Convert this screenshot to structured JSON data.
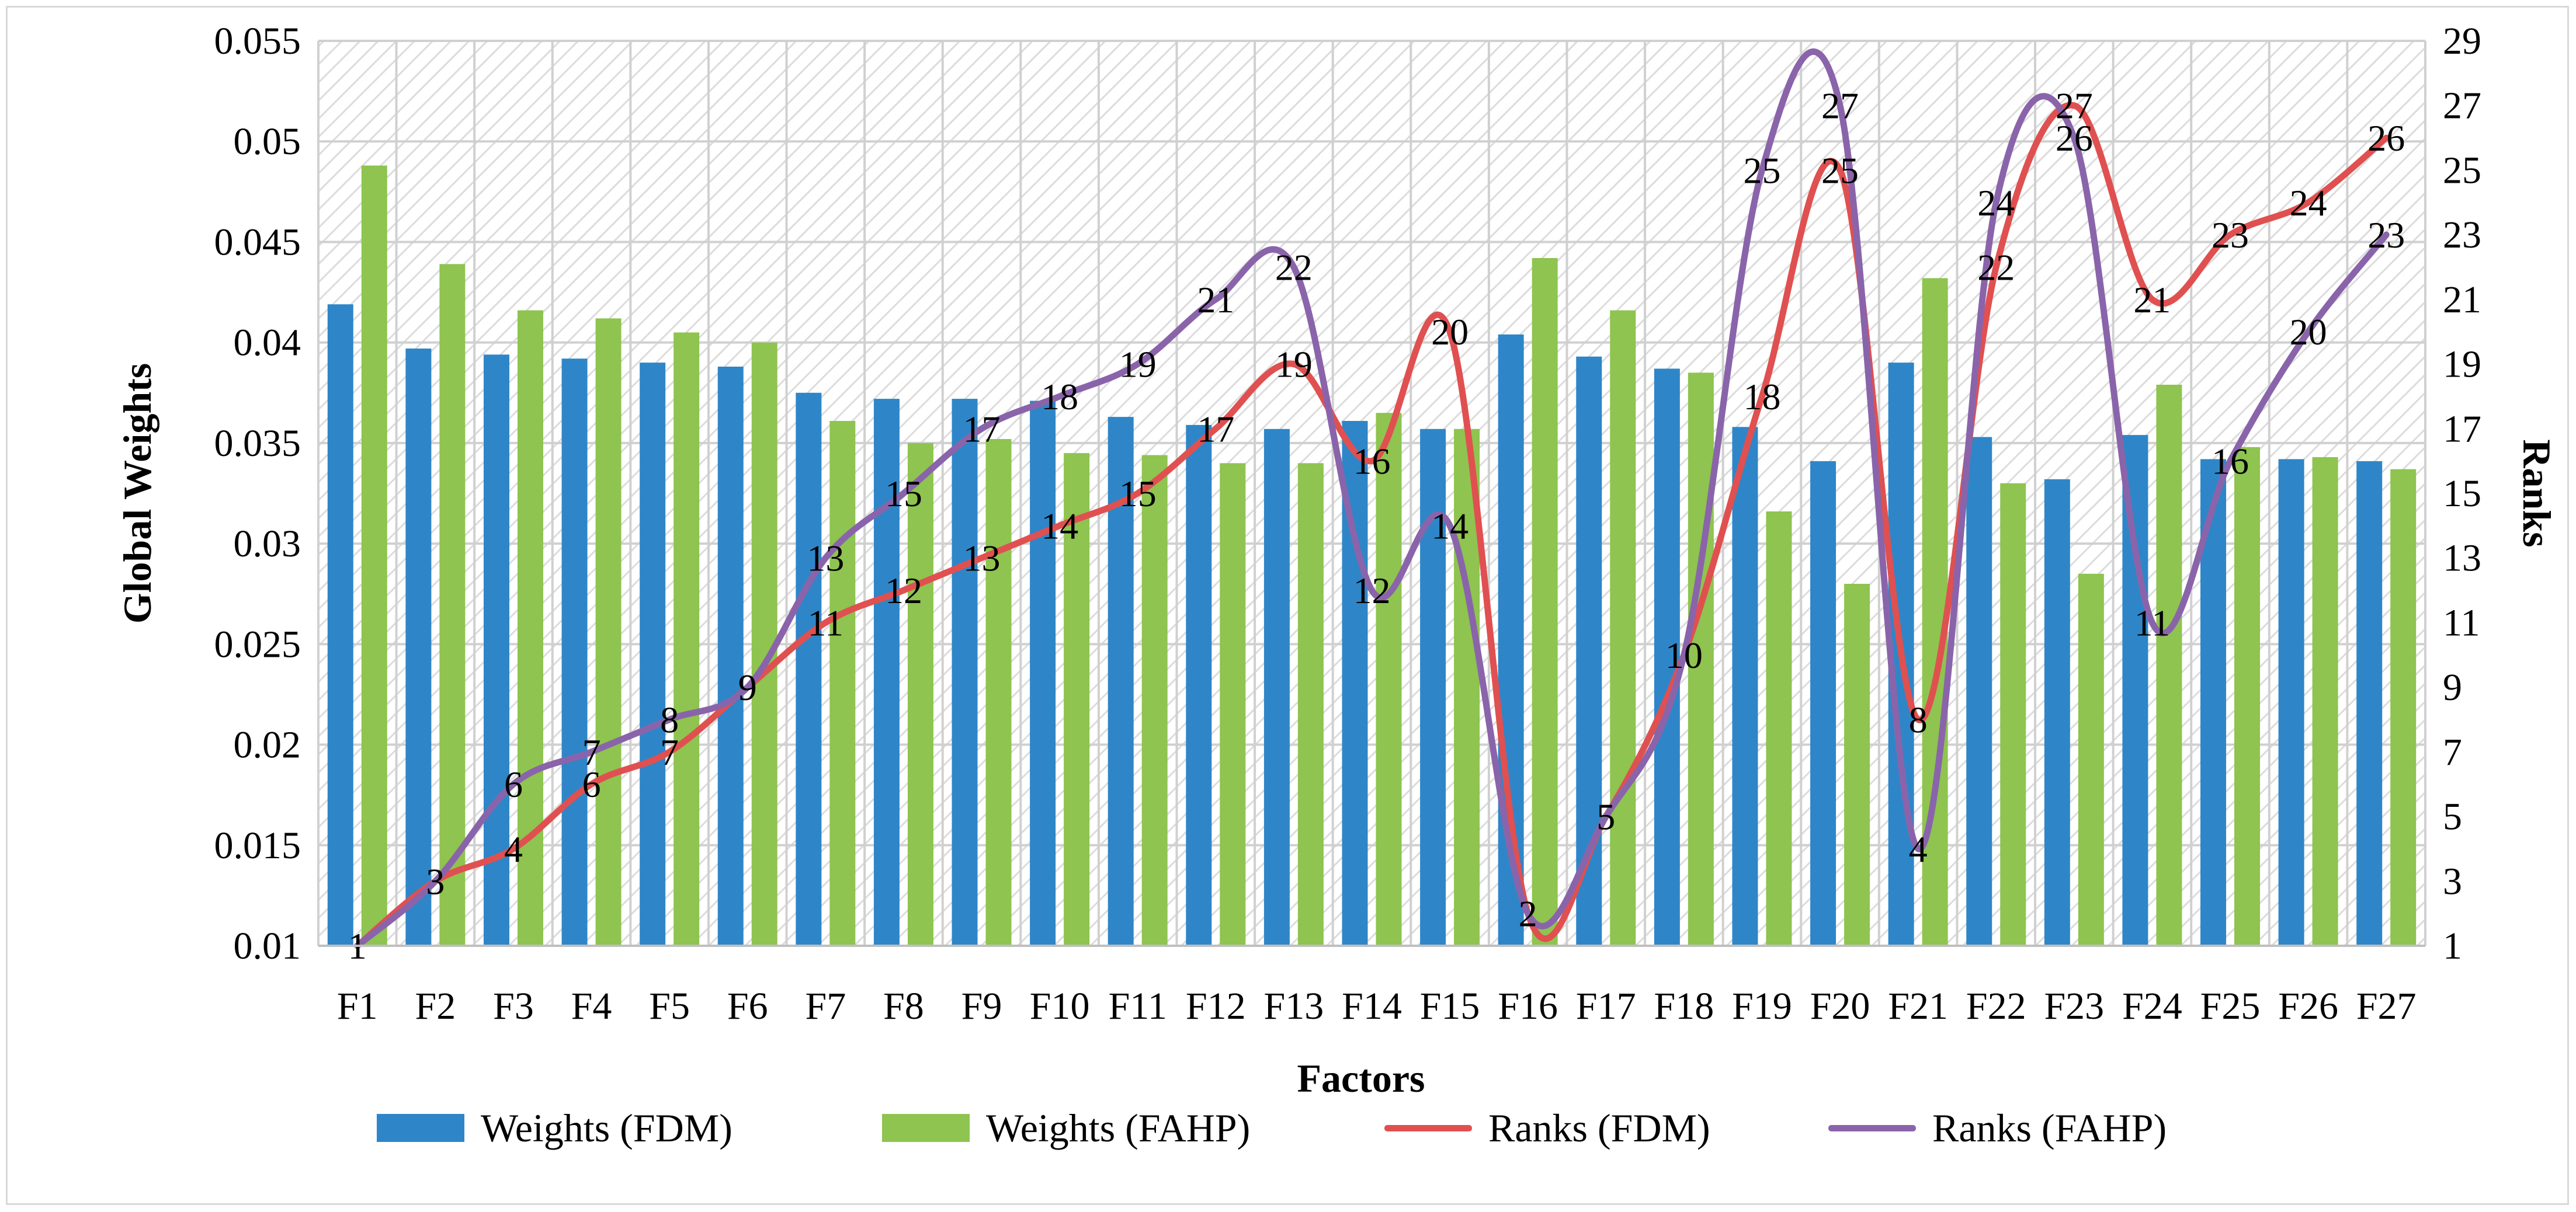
{
  "chart_data": {
    "type": "bar",
    "xlabel": "Factors",
    "ylabel": "Global Weights",
    "y2label": "Ranks",
    "ylim": [
      0.01,
      0.055
    ],
    "y2lim": [
      1,
      29
    ],
    "yticks": [
      "0.01",
      "0.015",
      "0.02",
      "0.025",
      "0.03",
      "0.035",
      "0.04",
      "0.045",
      "0.05",
      "0.055"
    ],
    "y2ticks": [
      "1",
      "3",
      "5",
      "7",
      "9",
      "11",
      "13",
      "15",
      "17",
      "19",
      "21",
      "23",
      "25",
      "27",
      "29"
    ],
    "categories": [
      "F1",
      "F2",
      "F3",
      "F4",
      "F5",
      "F6",
      "F7",
      "F8",
      "F9",
      "F10",
      "F11",
      "F12",
      "F13",
      "F14",
      "F15",
      "F16",
      "F17",
      "F18",
      "F19",
      "F20",
      "F21",
      "F22",
      "F23",
      "F24",
      "F25",
      "F26",
      "F27"
    ],
    "series": [
      {
        "name": "Weights (FDM)",
        "kind": "bar",
        "axis": "left",
        "color": "#2e86c8",
        "values": [
          0.0419,
          0.0397,
          0.0394,
          0.0392,
          0.039,
          0.0388,
          0.0375,
          0.0372,
          0.0372,
          0.0371,
          0.0363,
          0.0359,
          0.0357,
          0.0361,
          0.0357,
          0.0404,
          0.0393,
          0.0387,
          0.0358,
          0.0341,
          0.039,
          0.0353,
          0.0332,
          0.0354,
          0.0342,
          0.0342,
          0.0341
        ]
      },
      {
        "name": "Weights (FAHP)",
        "kind": "bar",
        "axis": "left",
        "color": "#8ec44f",
        "values": [
          0.0488,
          0.0439,
          0.0416,
          0.0412,
          0.0405,
          0.04,
          0.0361,
          0.035,
          0.0352,
          0.0345,
          0.0344,
          0.034,
          0.034,
          0.0365,
          0.0357,
          0.0442,
          0.0416,
          0.0385,
          0.0316,
          0.028,
          0.0432,
          0.033,
          0.0285,
          0.0379,
          0.0348,
          0.0343,
          0.0337
        ]
      },
      {
        "name": "Ranks (FDM)",
        "kind": "line",
        "axis": "right",
        "color": "#e05050",
        "values": [
          1,
          3,
          4,
          6,
          7,
          9,
          11,
          12,
          13,
          14,
          15,
          17,
          19,
          16,
          20,
          2,
          5,
          10,
          18,
          25,
          8,
          22,
          27,
          21,
          23,
          24,
          26
        ]
      },
      {
        "name": "Ranks (FAHP)",
        "kind": "line",
        "axis": "right",
        "color": "#8a64aa",
        "values": [
          1,
          3,
          6,
          7,
          8,
          9,
          13,
          15,
          17,
          18,
          19,
          21,
          22,
          12,
          14,
          2,
          5,
          10,
          25,
          27,
          4,
          24,
          26,
          11,
          16,
          20,
          23
        ]
      }
    ]
  }
}
